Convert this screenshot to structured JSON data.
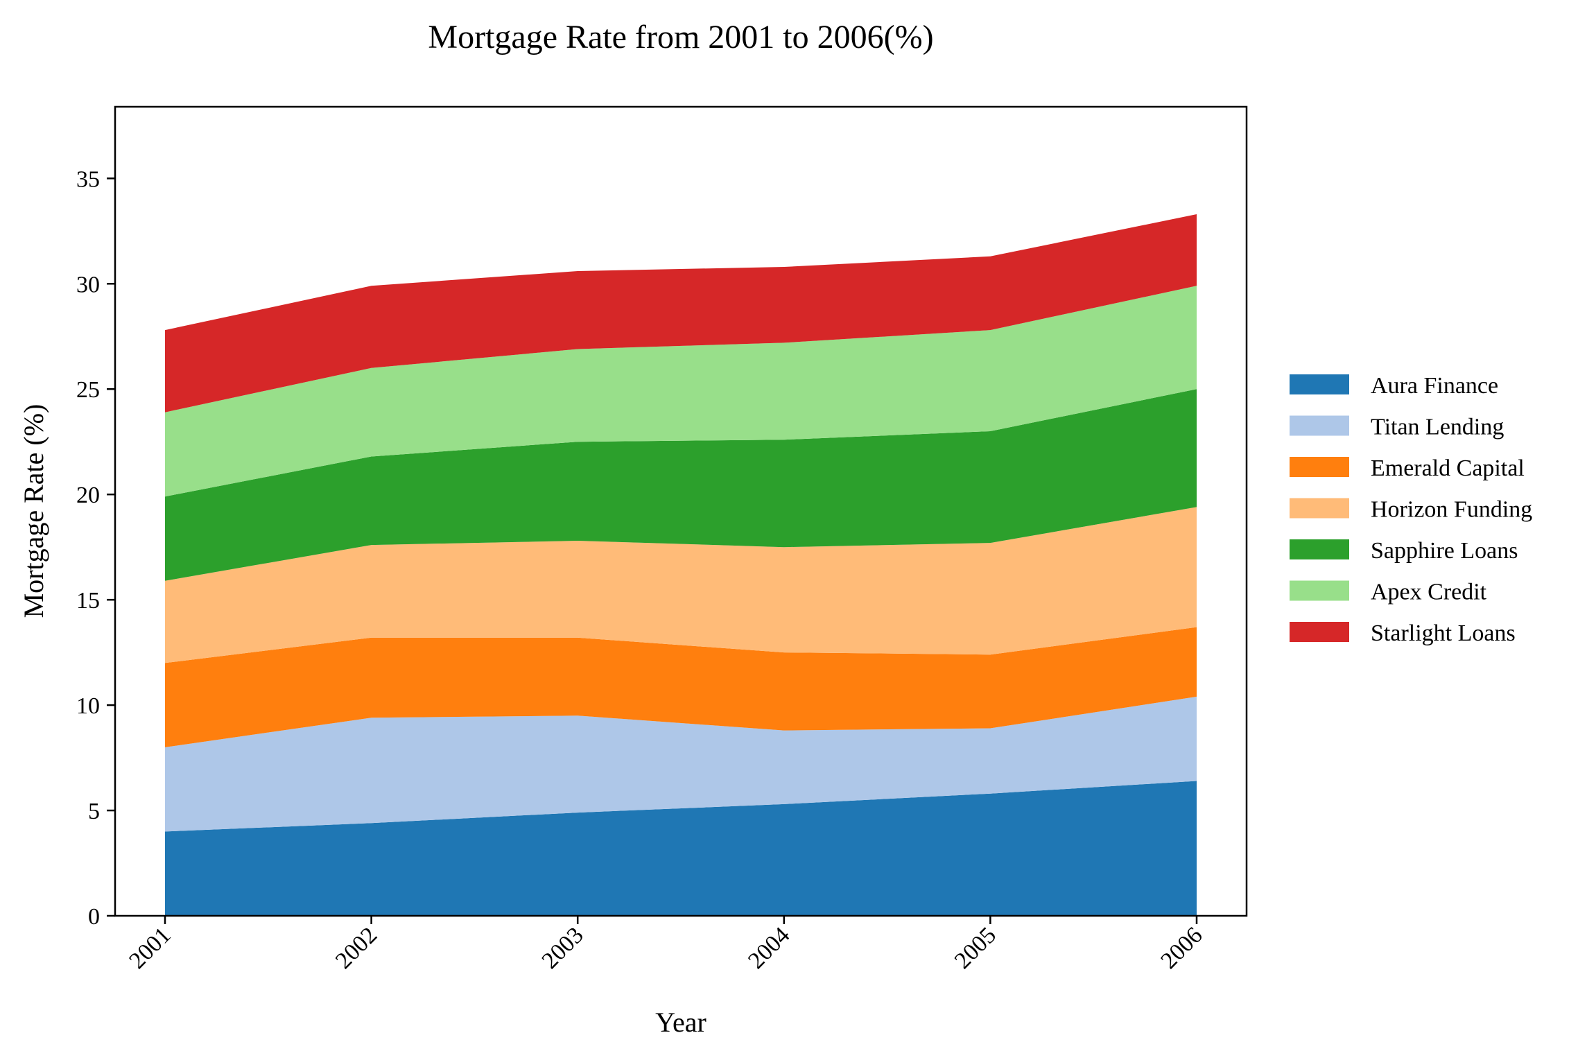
{
  "chart_data": {
    "type": "area",
    "stacked": true,
    "title": "Mortgage Rate from 2001 to 2006(%)",
    "xlabel": "Year",
    "ylabel": "Mortgage Rate (%)",
    "x": [
      "2001",
      "2002",
      "2003",
      "2004",
      "2005",
      "2006"
    ],
    "ylim": [
      0,
      38.4
    ],
    "yticks": [
      0,
      5,
      10,
      15,
      20,
      25,
      30,
      35
    ],
    "grid": false,
    "legend_position": "right",
    "series": [
      {
        "name": "Aura Finance",
        "color": "#1f77b4",
        "values": [
          4.0,
          4.4,
          4.9,
          5.3,
          5.8,
          6.4
        ]
      },
      {
        "name": "Titan Lending",
        "color": "#aec7e8",
        "values": [
          4.0,
          5.0,
          4.6,
          3.5,
          3.1,
          4.0
        ]
      },
      {
        "name": "Emerald Capital",
        "color": "#ff7f0e",
        "values": [
          4.0,
          3.8,
          3.7,
          3.7,
          3.5,
          3.3
        ]
      },
      {
        "name": "Horizon Funding",
        "color": "#ffbb78",
        "values": [
          3.9,
          4.4,
          4.6,
          5.0,
          5.3,
          5.7
        ]
      },
      {
        "name": "Sapphire Loans",
        "color": "#2ca02c",
        "values": [
          4.0,
          4.2,
          4.7,
          5.1,
          5.3,
          5.6
        ]
      },
      {
        "name": "Apex Credit",
        "color": "#98df8a",
        "values": [
          4.0,
          4.2,
          4.4,
          4.6,
          4.8,
          4.9
        ]
      },
      {
        "name": "Starlight Loans",
        "color": "#d62728",
        "values": [
          3.9,
          3.9,
          3.7,
          3.6,
          3.5,
          3.4
        ]
      }
    ]
  }
}
